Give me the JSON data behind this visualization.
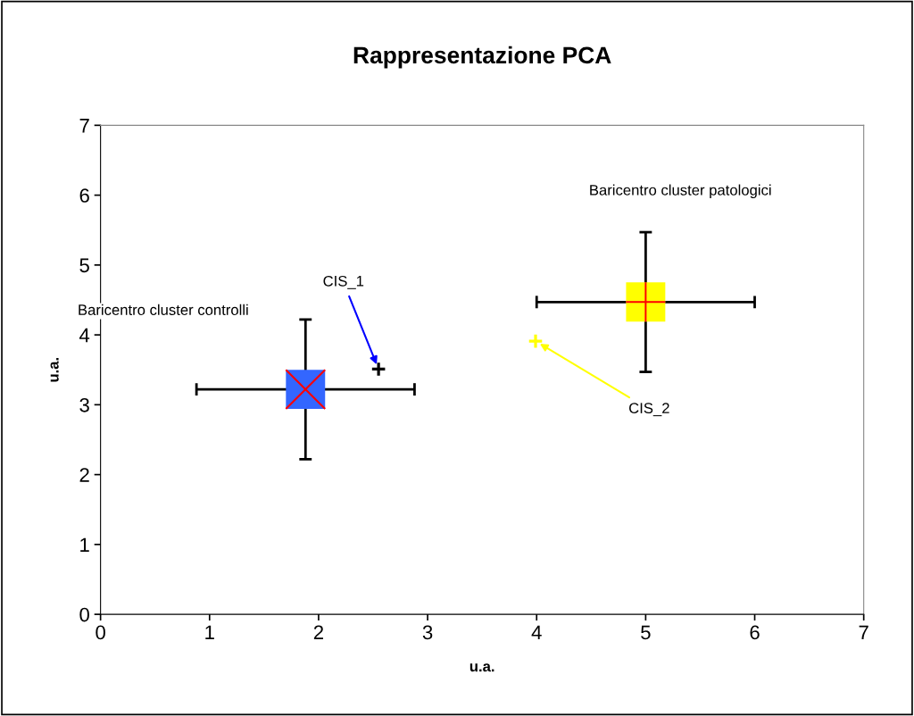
{
  "chart_data": {
    "type": "scatter",
    "title": "Rappresentazione PCA",
    "xlabel": "u.a.",
    "ylabel": "u.a.",
    "series": [
      {
        "x": [
          1.88
        ],
        "values": [
          3.22
        ],
        "color": "#3366ff",
        "marker": "square",
        "xerrors": [
          1.0
        ],
        "errors": [
          1.0
        ]
      },
      {
        "x": [
          1.88
        ],
        "values": [
          3.22
        ],
        "color": "#ff0000",
        "marker": "cross"
      },
      {
        "x": [
          5.0
        ],
        "values": [
          4.47
        ],
        "color": "#ffff00",
        "marker": "square",
        "xerrors": [
          1.0
        ],
        "errors": [
          1.0
        ]
      },
      {
        "x": [
          5.0
        ],
        "values": [
          4.47
        ],
        "color": "#ff0000"
      },
      {
        "x": [
          2.55
        ],
        "values": [
          3.51
        ],
        "color": "#000000"
      },
      {
        "x": [
          3.99
        ],
        "values": [
          3.91
        ],
        "color": "#ffff00"
      }
    ],
    "annotations": [
      "Baricentro cluster controlli",
      {
        "text": "CIS_1",
        "x": 2.55,
        "y": 3.51
      },
      "Baricentro cluster patologici",
      {
        "text": "CIS_2",
        "x": 3.99,
        "y": 3.91
      }
    ],
    "xlim": [
      0,
      7
    ],
    "ylim": [
      0,
      7
    ],
    "xticks": [
      0,
      1,
      2,
      3,
      4,
      5,
      6,
      7
    ],
    "yticks": [
      0,
      1,
      2,
      3,
      4,
      5,
      6,
      7
    ],
    "grid": false,
    "legend": false
  }
}
